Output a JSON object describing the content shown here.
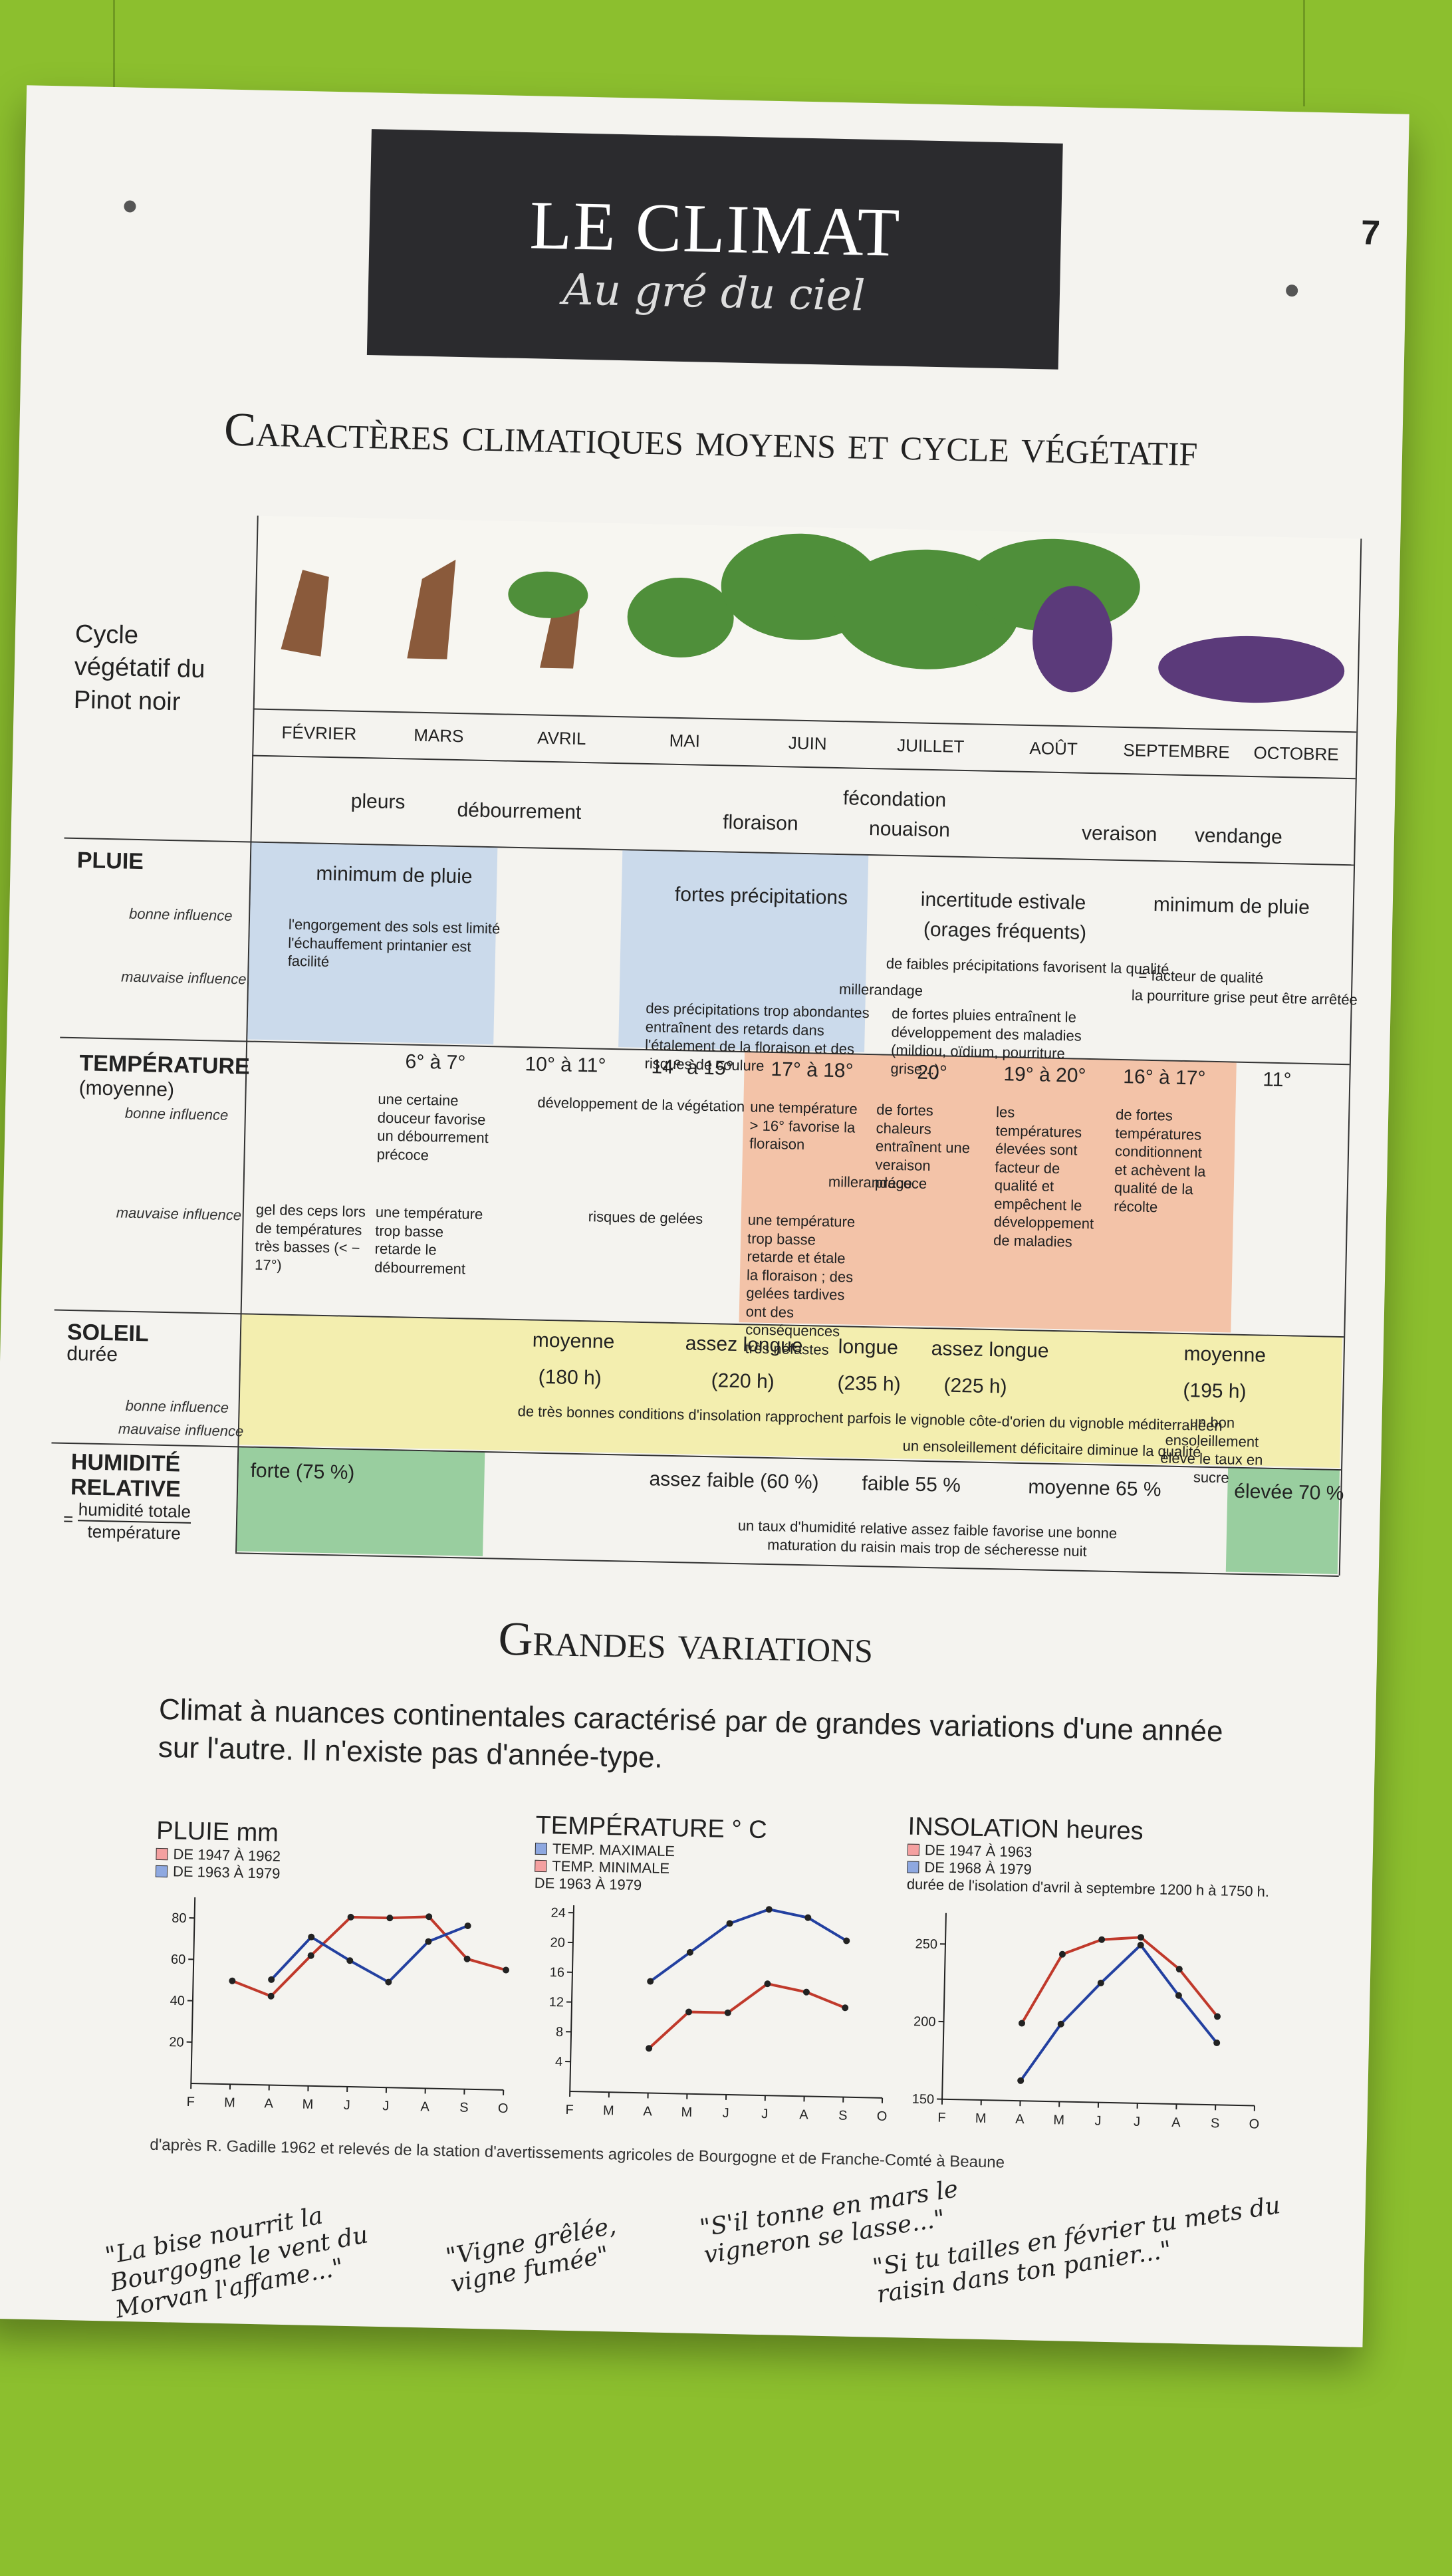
{
  "page_number": "7",
  "banner": {
    "title": "LE CLIMAT",
    "subtitle": "Au gré du ciel"
  },
  "main_title": "Caractères climatiques moyens et cycle végétatif",
  "cycle_label": "Cycle végétatif du Pinot noir",
  "months": [
    "FÉVRIER",
    "MARS",
    "AVRIL",
    "MAI",
    "JUIN",
    "JUILLET",
    "AOÛT",
    "SEPTEMBRE",
    "OCTOBRE"
  ],
  "phases": {
    "pleurs": "pleurs",
    "debourrement": "débourrement",
    "floraison": "floraison",
    "fecondation": "fécondation",
    "nouaison": "nouaison",
    "veraison": "veraison",
    "vendange": "vendange"
  },
  "pluie": {
    "label": "PLUIE",
    "bonne": "bonne influence",
    "mauvaise": "mauvaise influence",
    "minimum_1": "minimum de pluie",
    "text_1": "l'engorgement des sols est limité l'échauffement printanier est facilité",
    "fortes": "fortes précipitations",
    "incertitude": "incertitude estivale",
    "orages": "(orages fréquents)",
    "faibles": "de faibles précipitations favorisent la qualité",
    "millerandage": "millerandage",
    "abondantes": "des précipitations trop abondantes entraînent des retards dans l'étalement de la floraison et des risques de coulure",
    "fortes_pluies": "de fortes pluies entraînent le développement des maladies (mildiou, oïdium, pourriture grise...)",
    "minimum_2": "minimum de pluie",
    "facteur": "= facteur de qualité",
    "pourriture": "la pourriture grise peut être arrêtée"
  },
  "temperature": {
    "label": "TEMPÉRATURE",
    "label2": "(moyenne)",
    "bonne": "bonne influence",
    "mauvaise": "mauvaise influence",
    "values": [
      "6° à 7°",
      "10° à 11°",
      "14° à 15°",
      "17° à 18°",
      "20°",
      "19° à 20°",
      "16° à 17°",
      "11°"
    ],
    "mars_text": "une certaine douceur favorise un débourrement précoce",
    "vegetation": "développement de la végétation",
    "juin_text": "une température > 16° favorise la floraison",
    "juillet_text": "de fortes chaleurs entraînent une veraison précoce",
    "aout_text": "les températures élevées sont facteur de qualité et empêchent le développement de maladies",
    "sept_text": "de fortes températures conditionnent et achèvent la qualité de la récolte",
    "millerandage": "millerandage",
    "fev_bad": "gel des ceps lors de températures très basses (< − 17°)",
    "mars_bad": "une température trop basse retarde le débourrement",
    "gelees": "risques de gelées",
    "juin_bad": "une température trop basse retarde et étale la floraison ; des gelées tardives ont des conséquences très néfastes"
  },
  "soleil": {
    "label": "SOLEIL",
    "label2": "durée",
    "bonne": "bonne influence",
    "mauvaise": "mauvaise influence",
    "moyenne_1": "moyenne",
    "h_180": "(180 h)",
    "assez_longue_1": "assez longue",
    "h_220": "(220 h)",
    "longue": "longue",
    "h_235": "(235 h)",
    "assez_longue_2": "assez longue",
    "h_225": "(225 h)",
    "moyenne_2": "moyenne",
    "h_195": "(195 h)",
    "conditions": "de très bonnes conditions d'insolation rapprochent parfois le vignoble côte-d'orien du vignoble méditerranéen",
    "ensoleillement_bon": "un bon ensoleillement élève le taux en sucre",
    "deficitaire": "un ensoleillement déficitaire diminue la qualité"
  },
  "humidite": {
    "label": "HUMIDITÉ",
    "label2": "RELATIVE",
    "formula_top": "humidité totale",
    "formula_bottom": "température",
    "forte": "forte (75 %)",
    "assez_faible": "assez faible (60 %)",
    "faible": "faible 55 %",
    "moyenne": "moyenne 65 %",
    "elevee": "élevée 70 %",
    "text": "un taux d'humidité relative assez faible favorise une bonne maturation du raisin mais trop de sécheresse nuit"
  },
  "section2_title": "Grandes variations",
  "intro": "Climat à nuances continentales caractérisé par de grandes variations d'une année sur l'autre. Il n'existe pas d'année-type.",
  "colors": {
    "red": "#c0392b",
    "blue": "#2340a0",
    "board": "#f4f3ef",
    "wall": "#8cbf2e",
    "banner": "#2b2b2e"
  },
  "chart_data": [
    {
      "type": "line",
      "title": "PLUIE mm",
      "legend": [
        "DE 1947 À 1962",
        "DE 1963 À 1979"
      ],
      "x": [
        "F",
        "M",
        "A",
        "M",
        "J",
        "J",
        "A",
        "S",
        "O"
      ],
      "ylim": [
        0,
        90
      ],
      "yticks": [
        20,
        40,
        60,
        80
      ],
      "series": [
        {
          "name": "DE 1947 À 1962",
          "color": "#c0392b",
          "values": [
            null,
            50,
            43,
            63,
            82,
            82,
            83,
            63,
            58
          ]
        },
        {
          "name": "DE 1963 À 1979",
          "color": "#2340a0",
          "values": [
            null,
            null,
            51,
            72,
            61,
            51,
            71,
            79,
            null
          ]
        }
      ]
    },
    {
      "type": "line",
      "title": "TEMPÉRATURE ° C",
      "legend": [
        "TEMP. MAXIMALE",
        "TEMP. MINIMALE",
        "DE 1963 À 1979"
      ],
      "x": [
        "F",
        "M",
        "A",
        "M",
        "J",
        "J",
        "A",
        "S",
        "O"
      ],
      "ylim": [
        0,
        25
      ],
      "yticks": [
        4,
        8,
        12,
        16,
        20,
        24
      ],
      "series": [
        {
          "name": "TEMP. MAXIMALE",
          "color": "#2340a0",
          "values": [
            null,
            null,
            15,
            19,
            23,
            25,
            24,
            21,
            null
          ]
        },
        {
          "name": "TEMP. MINIMALE",
          "color": "#c0392b",
          "values": [
            null,
            null,
            6,
            11,
            11,
            15,
            14,
            12,
            null
          ]
        }
      ]
    },
    {
      "type": "line",
      "title": "INSOLATION heures",
      "legend": [
        "DE 1947 À 1963",
        "DE 1968 À 1979"
      ],
      "note": "durée de l'isolation d'avril à septembre 1200 h à 1750 h.",
      "x": [
        "F",
        "M",
        "A",
        "M",
        "J",
        "J",
        "A",
        "S",
        "O"
      ],
      "ylim": [
        150,
        270
      ],
      "yticks": [
        150,
        200,
        250
      ],
      "series": [
        {
          "name": "DE 1947 À 1963",
          "color": "#c0392b",
          "values": [
            null,
            null,
            200,
            245,
            255,
            257,
            237,
            207,
            null
          ]
        },
        {
          "name": "DE 1968 À 1979",
          "color": "#2340a0",
          "values": [
            null,
            null,
            163,
            200,
            227,
            252,
            220,
            190,
            null
          ]
        }
      ]
    }
  ],
  "source": "d'après R. Gadille 1962 et relevés de la station d'avertissements agricoles de Bourgogne et de Franche-Comté à Beaune",
  "quotes": [
    "\"La bise nourrit la Bourgogne le vent du Morvan l'affame...\"",
    "\"Vigne grêlée, vigne fumée\"",
    "\"S'il tonne en mars le vigneron se lasse...\"",
    "\"Si tu tailles en février tu mets du raisin dans ton panier...\""
  ]
}
